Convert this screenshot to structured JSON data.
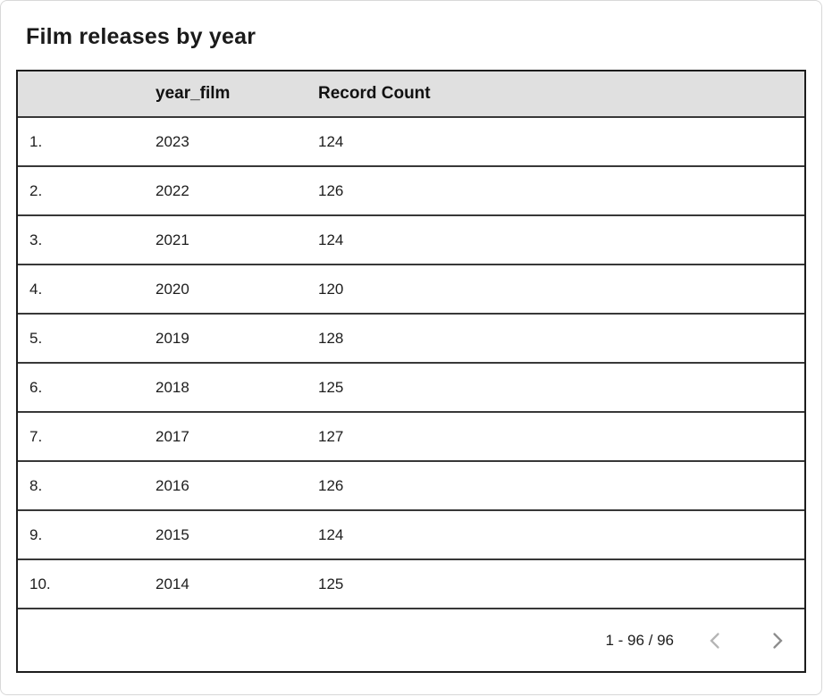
{
  "title": "Film releases by year",
  "table": {
    "columns": [
      {
        "key": "index",
        "label": ""
      },
      {
        "key": "year_film",
        "label": "year_film"
      },
      {
        "key": "record_count",
        "label": "Record Count"
      }
    ],
    "rows": [
      {
        "index": "1.",
        "year_film": "2023",
        "record_count": "124"
      },
      {
        "index": "2.",
        "year_film": "2022",
        "record_count": "126"
      },
      {
        "index": "3.",
        "year_film": "2021",
        "record_count": "124"
      },
      {
        "index": "4.",
        "year_film": "2020",
        "record_count": "120"
      },
      {
        "index": "5.",
        "year_film": "2019",
        "record_count": "128"
      },
      {
        "index": "6.",
        "year_film": "2018",
        "record_count": "125"
      },
      {
        "index": "7.",
        "year_film": "2017",
        "record_count": "127"
      },
      {
        "index": "8.",
        "year_film": "2016",
        "record_count": "126"
      },
      {
        "index": "9.",
        "year_film": "2015",
        "record_count": "124"
      },
      {
        "index": "10.",
        "year_film": "2014",
        "record_count": "125"
      }
    ]
  },
  "pagination": {
    "range_label": "1 - 96 / 96",
    "prev_icon": "chevron-left-icon",
    "next_icon": "chevron-right-icon"
  },
  "colors": {
    "header_bg": "#e0e0e0",
    "table_border": "#1d1d1d",
    "row_border": "#383838",
    "text": "#1d1d1d",
    "prev_icon": "#b5b5b5",
    "next_icon": "#8d8d8d",
    "widget_border": "#d8d8d8"
  },
  "chart_data": {
    "type": "table",
    "title": "Film releases by year",
    "categories": [
      "2023",
      "2022",
      "2021",
      "2020",
      "2019",
      "2018",
      "2017",
      "2016",
      "2015",
      "2014"
    ],
    "values": [
      124,
      126,
      124,
      120,
      128,
      125,
      127,
      126,
      124,
      125
    ],
    "xlabel": "year_film",
    "ylabel": "Record Count",
    "total_records": "1 - 96 / 96"
  }
}
